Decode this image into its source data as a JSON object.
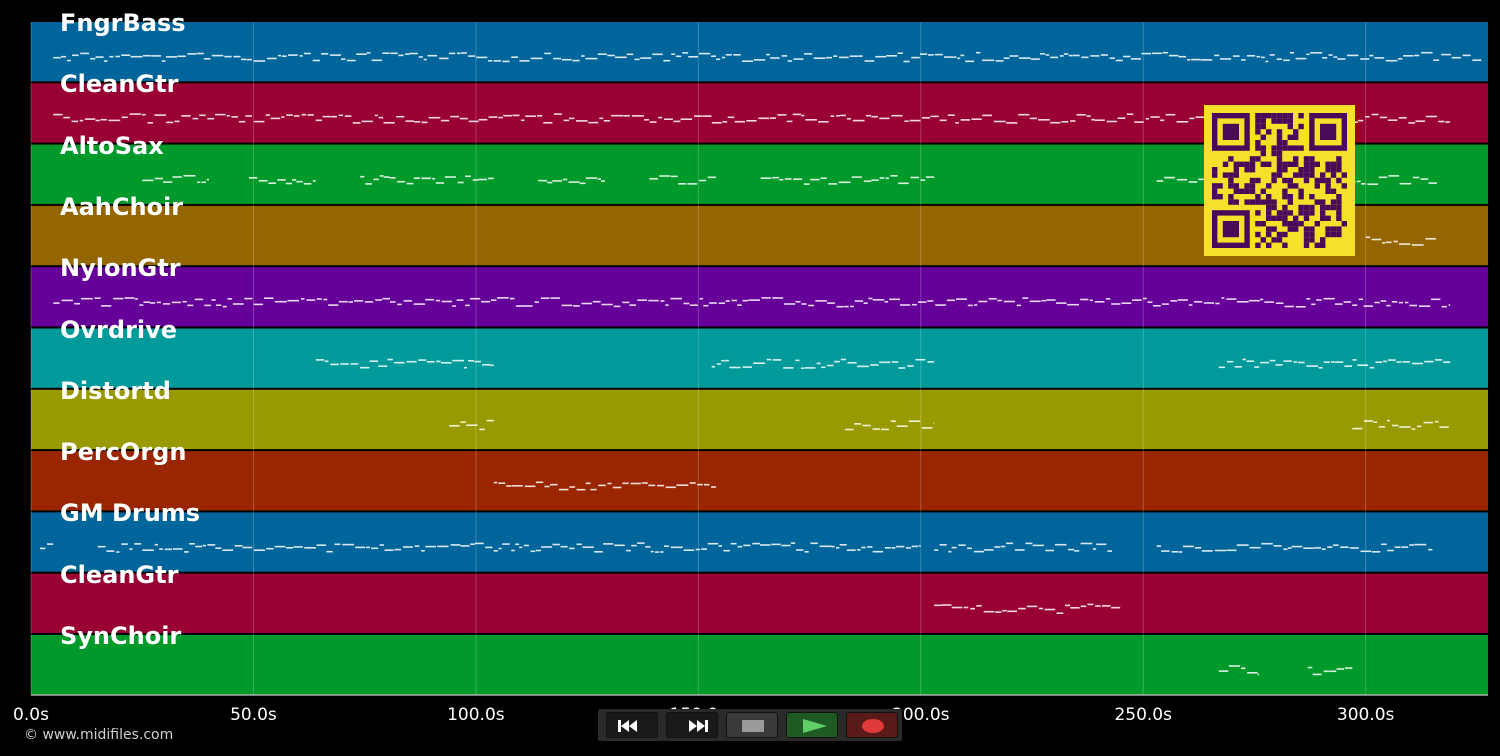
{
  "timeline": {
    "duration_s": 327.5,
    "ticks": [
      {
        "value": 0,
        "label": "0.0s"
      },
      {
        "value": 50,
        "label": "50.0s"
      },
      {
        "value": 100,
        "label": "100.0s"
      },
      {
        "value": 150,
        "label": "150.0s"
      },
      {
        "value": 200,
        "label": "200.0s"
      },
      {
        "value": 250,
        "label": "250.0s"
      },
      {
        "value": 300,
        "label": "300.0s"
      }
    ]
  },
  "tracks": [
    {
      "name": "FngrBass",
      "color": "#00659b",
      "segments": [
        [
          5,
          326
        ]
      ]
    },
    {
      "name": "CleanGtr",
      "color": "#990033",
      "segments": [
        [
          5,
          319
        ]
      ]
    },
    {
      "name": "AltoSax",
      "color": "#009a2b",
      "segments": [
        [
          25,
          40
        ],
        [
          49,
          64
        ],
        [
          74,
          104
        ],
        [
          114,
          129
        ],
        [
          139,
          154
        ],
        [
          164,
          203
        ],
        [
          253,
          316
        ]
      ]
    },
    {
      "name": "AahChoir",
      "color": "#956600",
      "segments": [
        [
          300,
          316
        ]
      ]
    },
    {
      "name": "NylonGtr",
      "color": "#650099",
      "segments": [
        [
          5,
          319
        ]
      ]
    },
    {
      "name": "Ovrdrive",
      "color": "#009a9a",
      "segments": [
        [
          64,
          104
        ],
        [
          153,
          203
        ],
        [
          267,
          319
        ]
      ]
    },
    {
      "name": "Distortd",
      "color": "#989a00",
      "segments": [
        [
          94,
          104
        ],
        [
          183,
          203
        ],
        [
          297,
          319
        ]
      ]
    },
    {
      "name": "PercOrgn",
      "color": "#992600",
      "segments": [
        [
          104,
          154
        ]
      ]
    },
    {
      "name": "GM Drums",
      "color": "#00659b",
      "segments": [
        [
          2,
          5
        ],
        [
          15,
          104
        ],
        [
          104,
          200
        ],
        [
          203,
          243
        ],
        [
          253,
          315
        ]
      ]
    },
    {
      "name": "CleanGtr",
      "color": "#990033",
      "segments": [
        [
          203,
          245
        ]
      ]
    },
    {
      "name": "SynChoir",
      "color": "#009a2b",
      "segments": [
        [
          267,
          276
        ],
        [
          287,
          297
        ]
      ]
    }
  ],
  "credit": "© www.midifiles.com",
  "transport": [
    {
      "name": "rewind-button",
      "icon": "rewind-icon",
      "color": "#1a1a1a"
    },
    {
      "name": "fast-forward-button",
      "icon": "fast-forward-icon",
      "color": "#1a1a1a"
    },
    {
      "name": "stop-button",
      "icon": "stop-icon",
      "color": "#3a3a3a"
    },
    {
      "name": "play-button",
      "icon": "play-icon",
      "color": "#1f5a25"
    },
    {
      "name": "record-button",
      "icon": "record-icon",
      "color": "#5a1a1a"
    }
  ],
  "qr": {
    "fg": "#4a0a5a",
    "bg": "#f5e02a"
  }
}
